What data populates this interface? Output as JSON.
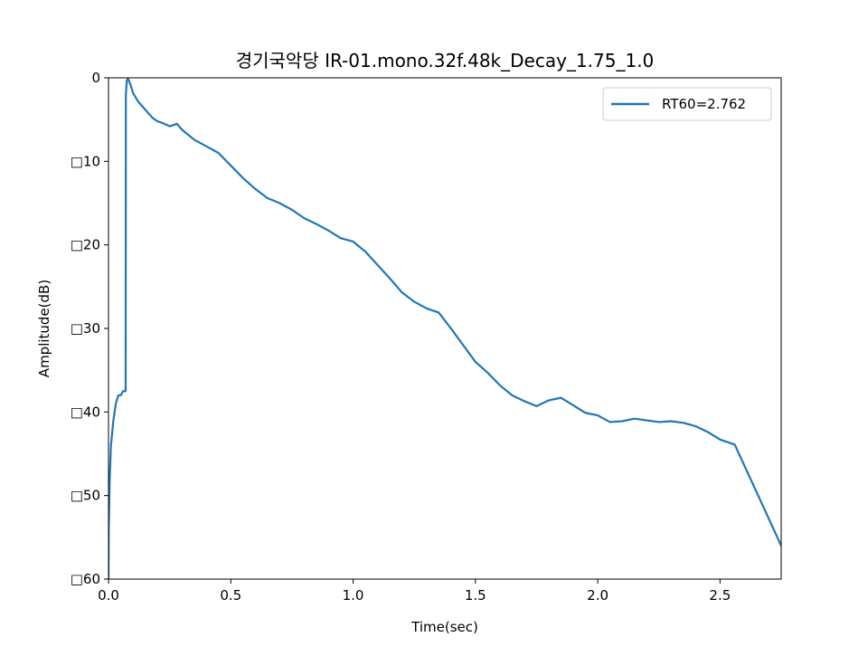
{
  "chart_data": {
    "type": "line",
    "title": "경기국악당 IR-01.mono.32f.48k_Decay_1.75_1.0",
    "xlabel": "Time(sec)",
    "ylabel": "Amplitude(dB)",
    "xlim": [
      0,
      2.75
    ],
    "ylim": [
      -60,
      0
    ],
    "x_ticks": [
      0,
      0.5,
      1.0,
      1.5,
      2.0,
      2.5
    ],
    "x_tick_labels": [
      "0.0",
      "0.5",
      "1.0",
      "1.5",
      "2.0",
      "2.5"
    ],
    "y_ticks": [
      0,
      -10,
      -20,
      -30,
      -40,
      -50,
      -60
    ],
    "y_tick_labels": [
      "0",
      "□10",
      "□20",
      "□30",
      "□40",
      "□50",
      "□60"
    ],
    "grid": false,
    "legend": {
      "position": "upper right"
    },
    "series": [
      {
        "name": "RT60=2.762",
        "color": "#1f77b4",
        "x": [
          0,
          0.001,
          0.005,
          0.01,
          0.02,
          0.03,
          0.04,
          0.05,
          0.06,
          0.07,
          0.071,
          0.075,
          0.08,
          0.09,
          0.1,
          0.12,
          0.15,
          0.18,
          0.2,
          0.22,
          0.25,
          0.28,
          0.3,
          0.35,
          0.4,
          0.45,
          0.5,
          0.55,
          0.6,
          0.65,
          0.7,
          0.75,
          0.8,
          0.85,
          0.9,
          0.95,
          1.0,
          1.05,
          1.1,
          1.15,
          1.2,
          1.25,
          1.3,
          1.35,
          1.4,
          1.45,
          1.5,
          1.55,
          1.6,
          1.65,
          1.7,
          1.75,
          1.8,
          1.85,
          1.9,
          1.95,
          2.0,
          2.05,
          2.1,
          2.15,
          2.2,
          2.25,
          2.3,
          2.35,
          2.4,
          2.45,
          2.5,
          2.55,
          2.56,
          2.75
        ],
        "y": [
          -60,
          -54,
          -48,
          -44,
          -41,
          -39,
          -38,
          -38,
          -37.5,
          -37.5,
          -2,
          -0.3,
          -0.1,
          -0.8,
          -1.8,
          -2.8,
          -3.8,
          -4.8,
          -5.2,
          -5.4,
          -5.8,
          -5.5,
          -6.2,
          -7.4,
          -8.2,
          -9.0,
          -10.5,
          -12.0,
          -13.3,
          -14.4,
          -15.0,
          -15.8,
          -16.8,
          -17.5,
          -18.3,
          -19.2,
          -19.6,
          -20.8,
          -22.4,
          -24.0,
          -25.7,
          -26.8,
          -27.6,
          -28.1,
          -30.0,
          -32.0,
          -34.0,
          -35.3,
          -36.8,
          -38.0,
          -38.7,
          -39.3,
          -38.6,
          -38.3,
          -39.2,
          -40.1,
          -40.4,
          -41.2,
          -41.1,
          -40.8,
          -41.0,
          -41.2,
          -41.1,
          -41.3,
          -41.7,
          -42.4,
          -43.3,
          -43.8,
          -43.9,
          -56.0
        ]
      }
    ]
  }
}
